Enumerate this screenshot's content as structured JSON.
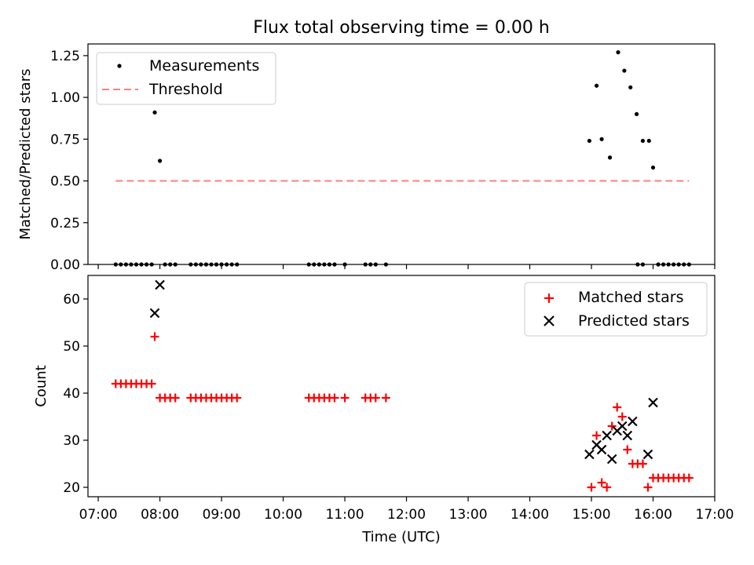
{
  "chart_data": [
    {
      "type": "scatter",
      "title": "Flux total observing time = 0.00 h",
      "xlabel": "",
      "ylabel": "Matched/Predicted stars",
      "xlim": [
        "06:50",
        "17:00"
      ],
      "ylim": [
        0,
        1.32
      ],
      "yticks": [
        0.0,
        0.25,
        0.5,
        0.75,
        1.0,
        1.25
      ],
      "ytick_labels": [
        "0.00",
        "0.25",
        "0.50",
        "0.75",
        "1.00",
        "1.25"
      ],
      "grid": false,
      "legend": "top-left",
      "series": [
        {
          "name": "Measurements",
          "marker": "dot",
          "color": "#000000",
          "x": [
            "07:17",
            "07:22",
            "07:27",
            "07:32",
            "07:37",
            "07:42",
            "07:47",
            "07:52",
            "07:55",
            "08:00",
            "08:05",
            "08:10",
            "08:15",
            "08:30",
            "08:35",
            "08:40",
            "08:45",
            "08:50",
            "08:55",
            "09:00",
            "09:05",
            "09:10",
            "09:15",
            "10:25",
            "10:30",
            "10:35",
            "10:40",
            "10:45",
            "10:50",
            "11:00",
            "11:20",
            "11:25",
            "11:30",
            "11:40",
            "14:58",
            "15:05",
            "15:10",
            "15:18",
            "15:26",
            "15:32",
            "15:38",
            "15:44",
            "15:50",
            "15:56",
            "16:00",
            "15:45",
            "15:50",
            "16:05",
            "16:10",
            "16:15",
            "16:20",
            "16:25",
            "16:30",
            "16:35"
          ],
          "y": [
            0,
            0,
            0,
            0,
            0,
            0,
            0,
            0,
            0.91,
            0.62,
            0,
            0,
            0,
            0,
            0,
            0,
            0,
            0,
            0,
            0,
            0,
            0,
            0,
            0,
            0,
            0,
            0,
            0,
            0,
            0,
            0,
            0,
            0,
            0,
            0.74,
            1.07,
            0.75,
            0.64,
            1.27,
            1.16,
            1.06,
            0.9,
            0.74,
            0.74,
            0.58,
            0,
            0,
            0,
            0,
            0,
            0,
            0,
            0,
            0
          ]
        },
        {
          "name": "Threshold",
          "style": "dashed",
          "color": "#ff7f7f",
          "x": [
            "07:17",
            "16:35"
          ],
          "y": [
            0.5,
            0.5
          ]
        }
      ]
    },
    {
      "type": "scatter",
      "title": "",
      "xlabel": "Time (UTC)",
      "ylabel": "Count",
      "xlim": [
        "06:50",
        "17:00"
      ],
      "ylim": [
        18,
        65
      ],
      "xticks": [
        "07:00",
        "08:00",
        "09:00",
        "10:00",
        "11:00",
        "12:00",
        "13:00",
        "14:00",
        "15:00",
        "16:00",
        "17:00"
      ],
      "yticks": [
        20,
        30,
        40,
        50,
        60
      ],
      "ytick_labels": [
        "20",
        "30",
        "40",
        "50",
        "60"
      ],
      "grid": false,
      "legend": "top-right",
      "series": [
        {
          "name": "Matched stars",
          "marker": "plus",
          "color": "#ff0000",
          "x": [
            "07:17",
            "07:22",
            "07:27",
            "07:32",
            "07:37",
            "07:42",
            "07:47",
            "07:52",
            "07:55",
            "08:00",
            "08:05",
            "08:10",
            "08:15",
            "08:30",
            "08:35",
            "08:40",
            "08:45",
            "08:50",
            "08:55",
            "09:00",
            "09:05",
            "09:10",
            "09:15",
            "10:25",
            "10:30",
            "10:35",
            "10:40",
            "10:45",
            "10:50",
            "11:00",
            "11:20",
            "11:25",
            "11:30",
            "11:40",
            "15:00",
            "15:05",
            "15:10",
            "15:15",
            "15:20",
            "15:25",
            "15:30",
            "15:35",
            "15:40",
            "15:45",
            "15:50",
            "15:55",
            "16:00",
            "16:05",
            "16:10",
            "16:15",
            "16:20",
            "16:25",
            "16:30",
            "16:35"
          ],
          "y": [
            42,
            42,
            42,
            42,
            42,
            42,
            42,
            42,
            52,
            39,
            39,
            39,
            39,
            39,
            39,
            39,
            39,
            39,
            39,
            39,
            39,
            39,
            39,
            39,
            39,
            39,
            39,
            39,
            39,
            39,
            39,
            39,
            39,
            39,
            20,
            31,
            21,
            20,
            33,
            37,
            35,
            28,
            25,
            25,
            25,
            20,
            22,
            22,
            22,
            22,
            22,
            22,
            22,
            22
          ]
        },
        {
          "name": "Predicted stars",
          "marker": "x",
          "color": "#000000",
          "x": [
            "07:55",
            "08:00",
            "14:58",
            "15:05",
            "15:10",
            "15:15",
            "15:20",
            "15:25",
            "15:30",
            "15:35",
            "15:40",
            "15:55",
            "16:00"
          ],
          "y": [
            57,
            63,
            27,
            29,
            28,
            31,
            26,
            32,
            33,
            31,
            34,
            27,
            38
          ]
        }
      ]
    }
  ]
}
